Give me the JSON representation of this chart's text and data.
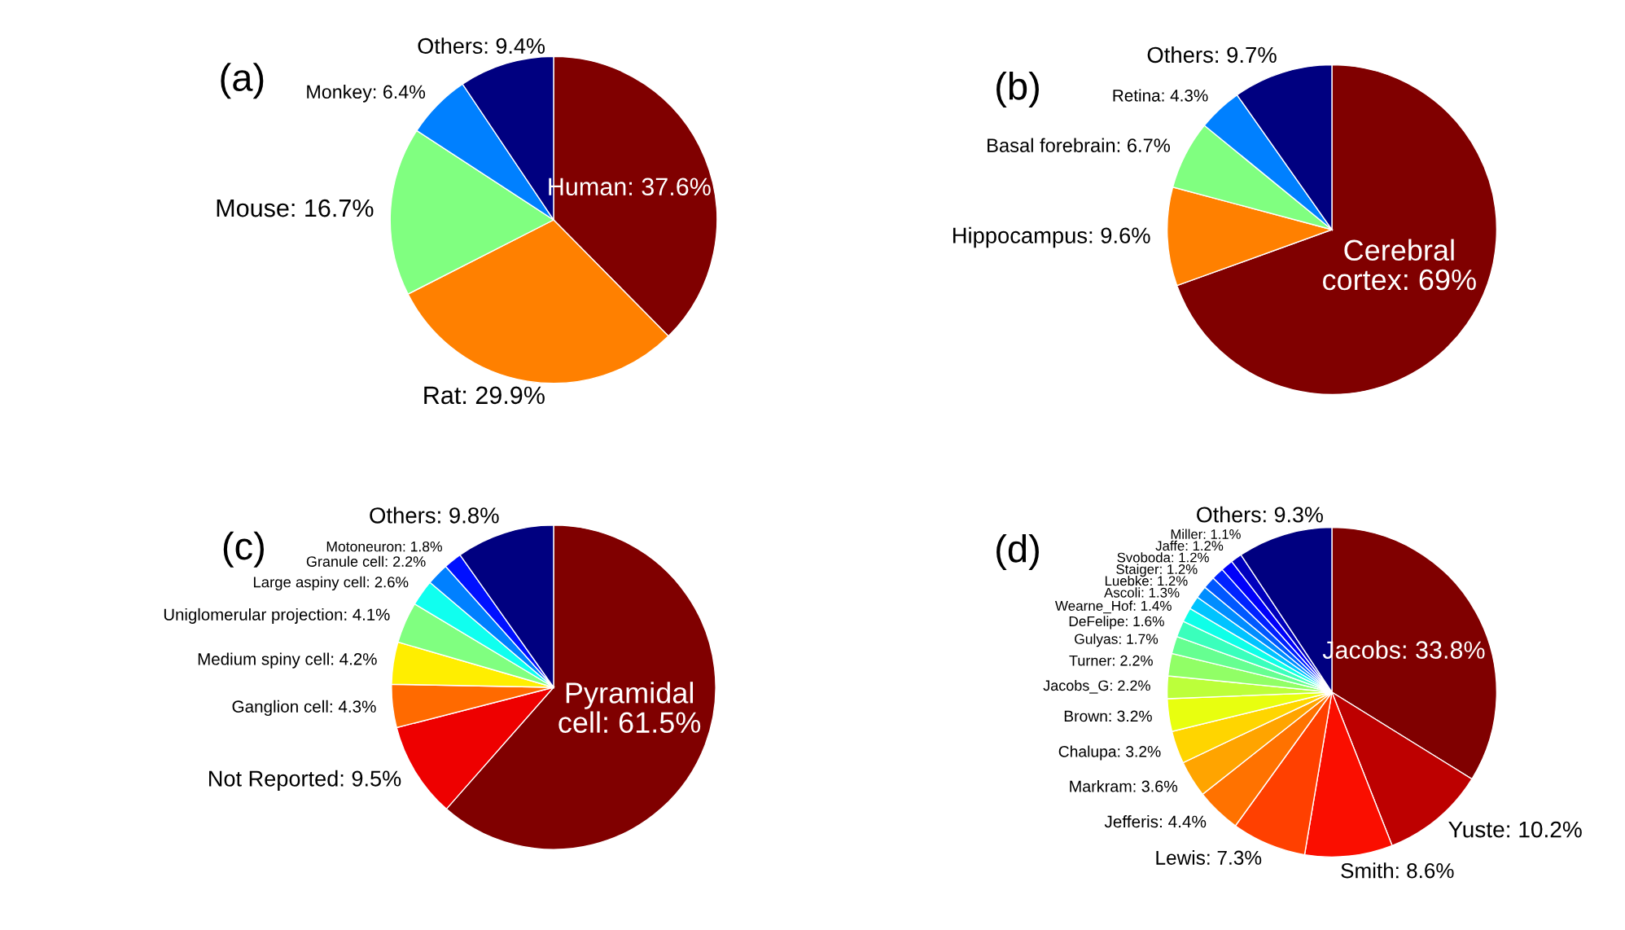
{
  "chart_data": [
    {
      "type": "pie",
      "title": "(a)",
      "categories": [
        "Human",
        "Rat",
        "Mouse",
        "Monkey",
        "Others"
      ],
      "values": [
        37.6,
        29.9,
        16.7,
        6.4,
        9.4
      ],
      "value_labels": [
        "37.6%",
        "29.9%",
        "16.7%",
        "6.4%",
        "9.4%"
      ],
      "colors": [
        "#800000",
        "#ff8000",
        "#80ff80",
        "#0080ff",
        "#000080"
      ]
    },
    {
      "type": "pie",
      "title": "(b)",
      "categories": [
        "Cerebral\ncortex",
        "Hippocampus",
        "Basal forebrain",
        "Retina",
        "Others"
      ],
      "values": [
        69,
        9.6,
        6.7,
        4.3,
        9.7
      ],
      "value_labels": [
        "69%",
        "9.6%",
        "6.7%",
        "4.3%",
        "9.7%"
      ],
      "colors": [
        "#800000",
        "#ff8000",
        "#80ff80",
        "#0080ff",
        "#000080"
      ]
    },
    {
      "type": "pie",
      "title": "(c)",
      "categories": [
        "Pyramidal\ncell",
        "Not Reported",
        "Ganglion cell",
        "Medium spiny cell",
        "Uniglomerular projection",
        "Large aspiny cell",
        "Granule cell",
        "Motoneuron",
        "Others"
      ],
      "values": [
        61.5,
        9.5,
        4.3,
        4.2,
        4.1,
        2.6,
        2.2,
        1.8,
        9.8
      ],
      "value_labels": [
        "61.5%",
        "9.5%",
        "4.3%",
        "4.2%",
        "4.1%",
        "2.6%",
        "2.2%",
        "1.8%",
        "9.8%"
      ],
      "colors": [
        "#800000",
        "#ee0000",
        "#ff6a00",
        "#ffee00",
        "#80ff80",
        "#10ffef",
        "#0080ff",
        "#0010ff",
        "#000080"
      ]
    },
    {
      "type": "pie",
      "title": "(d)",
      "categories": [
        "Jacobs",
        "Yuste",
        "Smith",
        "Lewis",
        "Jefferis",
        "Markram",
        "Chalupa",
        "Brown",
        "Jacobs_G",
        "Turner",
        "Gulyas",
        "DeFelipe",
        "Wearne_Hof",
        "Ascoli",
        "Luebke",
        "Staiger",
        "Svoboda",
        "Jaffe",
        "Miller",
        "Others"
      ],
      "values": [
        33.8,
        10.2,
        8.6,
        7.3,
        4.4,
        3.6,
        3.2,
        3.2,
        2.2,
        2.2,
        1.7,
        1.6,
        1.4,
        1.3,
        1.2,
        1.2,
        1.2,
        1.2,
        1.1,
        9.3
      ],
      "value_labels": [
        "33.8%",
        "10.2%",
        "8.6%",
        "7.3%",
        "4.4%",
        "3.6%",
        "3.2%",
        "3.2%",
        "2.2%",
        "2.2%",
        "1.7%",
        "1.6%",
        "1.4%",
        "1.3%",
        "1.2%",
        "1.2%",
        "1.2%",
        "1.2%",
        "1.1%",
        "9.3%"
      ],
      "colors": [
        "#800000",
        "#bd0000",
        "#fa0e00",
        "#ff4000",
        "#ff7200",
        "#ffa400",
        "#ffd500",
        "#e8ff0f",
        "#bcff3a",
        "#91ff66",
        "#66ff91",
        "#3affbc",
        "#0fffe8",
        "#00c3ff",
        "#008dff",
        "#0058ff",
        "#0022ff",
        "#0000f9",
        "#0000bd",
        "#000080"
      ]
    }
  ]
}
